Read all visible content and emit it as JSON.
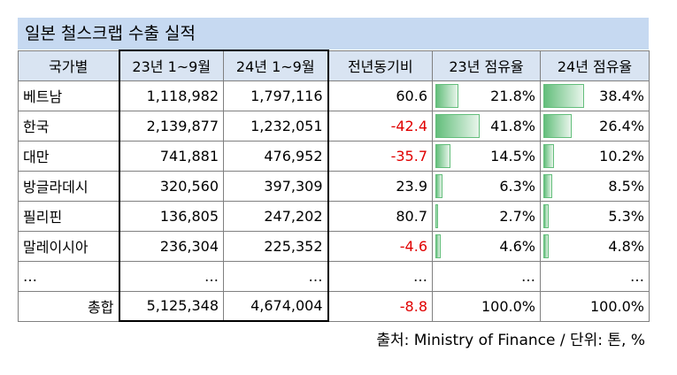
{
  "title": "일본 철스크랩 수출 실적",
  "headers": [
    "국가별",
    "23년 1~9월",
    "24년 1~9월",
    "전년동기비",
    "23년 점유율",
    "24년 점유율"
  ],
  "rows": [
    {
      "country": "베트남",
      "y23": "1,118,982",
      "y24": "1,797,116",
      "yoy": "60.6",
      "share23": "21.8%",
      "share24": "38.4%",
      "share23_value": 21.8,
      "share24_value": 38.4,
      "negative": false
    },
    {
      "country": "한국",
      "y23": "2,139,877",
      "y24": "1,232,051",
      "yoy": "-42.4",
      "share23": "41.8%",
      "share24": "26.4%",
      "share23_value": 41.8,
      "share24_value": 26.4,
      "negative": true
    },
    {
      "country": "대만",
      "y23": "741,881",
      "y24": "476,952",
      "yoy": "-35.7",
      "share23": "14.5%",
      "share24": "10.2%",
      "share23_value": 14.5,
      "share24_value": 10.2,
      "negative": true
    },
    {
      "country": "방글라데시",
      "y23": "320,560",
      "y24": "397,309",
      "yoy": "23.9",
      "share23": "6.3%",
      "share24": "8.5%",
      "share23_value": 6.3,
      "share24_value": 8.5,
      "negative": false
    },
    {
      "country": "필리핀",
      "y23": "136,805",
      "y24": "247,202",
      "yoy": "80.7",
      "share23": "2.7%",
      "share24": "5.3%",
      "share23_value": 2.7,
      "share24_value": 5.3,
      "negative": false
    },
    {
      "country": "말레이시아",
      "y23": "236,304",
      "y24": "225,352",
      "yoy": "-4.6",
      "share23": "4.6%",
      "share24": "4.8%",
      "share23_value": 4.6,
      "share24_value": 4.8,
      "negative": true
    },
    {
      "country": "…",
      "y23": "…",
      "y24": "…",
      "yoy": "…",
      "share23": "…",
      "share24": "…",
      "share23_value": null,
      "share24_value": null,
      "negative": false
    }
  ],
  "total": {
    "label": "총합",
    "y23": "5,125,348",
    "y24": "4,674,004",
    "yoy": "-8.8",
    "share23": "100.0%",
    "share24": "100.0%"
  },
  "source": "출처: Ministry of Finance / 단위: 톤, %",
  "colors": {
    "title_bg": "#c6d9f1",
    "header_bg": "#d9e4f2",
    "negative": "#e00000",
    "databar": "#63be7b"
  }
}
